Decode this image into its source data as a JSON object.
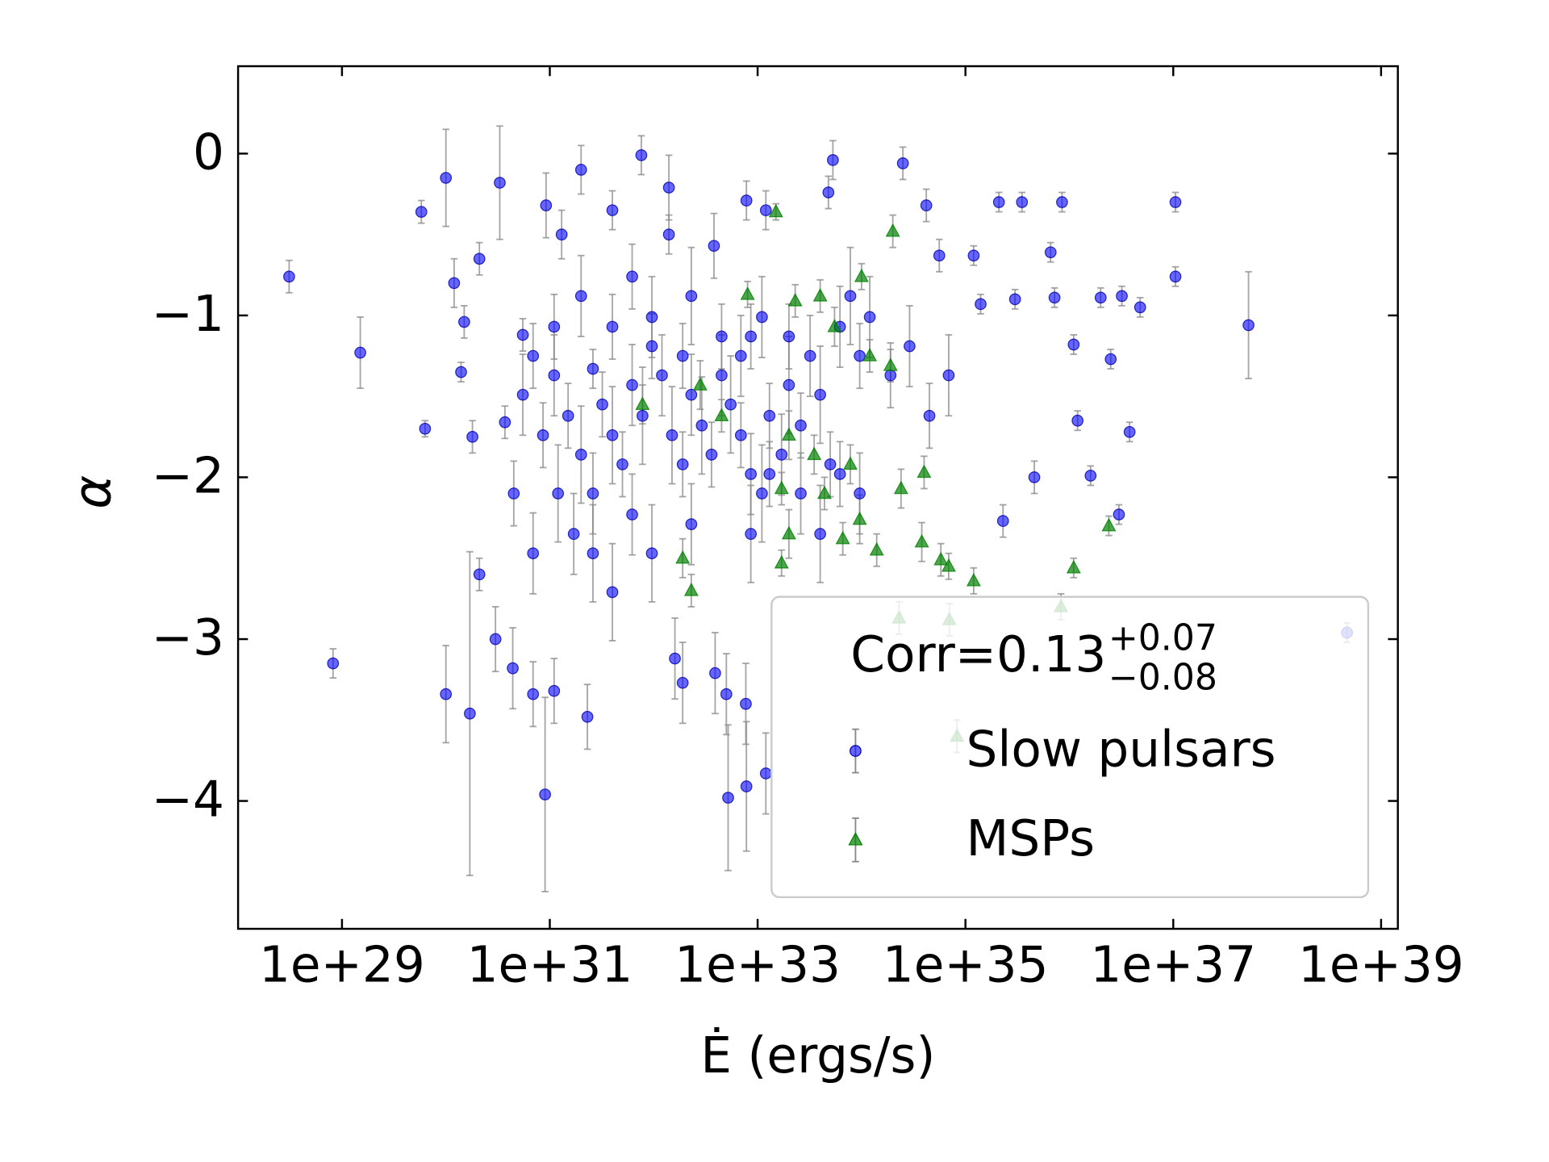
{
  "chart_data": {
    "type": "scatter",
    "xlabel": "Ė (ergs/s)",
    "ylabel": "α",
    "xscale": "log",
    "xlim": [
      1e+28,
      1.45e+39
    ],
    "ylim": [
      -4.79,
      0.54
    ],
    "xticks": [
      {
        "value": 1e+29,
        "label": "1e+29"
      },
      {
        "value": 1e+31,
        "label": "1e+31"
      },
      {
        "value": 1e+33,
        "label": "1e+33"
      },
      {
        "value": 1e+35,
        "label": "1e+35"
      },
      {
        "value": 1e+37,
        "label": "1e+37"
      },
      {
        "value": 1e+39,
        "label": "1e+39"
      }
    ],
    "yticks": [
      0,
      {
        "value": -1,
        "label": "−1"
      },
      {
        "value": -2,
        "label": "−2"
      },
      {
        "value": -3,
        "label": "−3"
      },
      {
        "value": -4,
        "label": "−4"
      }
    ],
    "legend": {
      "loc": "lower right",
      "title": "Corr=0.13",
      "title_upper": "+0.07",
      "title_lower": "−0.08"
    },
    "series": [
      {
        "name": "Slow pulsars",
        "color": "#0000ff",
        "marker": "circle",
        "x": [
          3.1e+28,
          8.2e+28,
          1.5e+29,
          5.8e+29,
          6.3e+29,
          1e+30,
          1e+30,
          1.2e+30,
          1.7e+30,
          2.1e+30,
          3e+30,
          3.3e+30,
          1.5e+30,
          1.4e+30,
          1.8e+30,
          2.1e+30,
          3.7e+30,
          4.4e+30,
          5.5e+30,
          6.9e+30,
          9e+30,
          9.2e+30,
          1.1e+31,
          1.3e+31,
          2e+31,
          2.3e+31,
          2.6e+31,
          4e+31,
          7.6e+31,
          1.4e+32,
          1.6e+32,
          1.9e+32,
          1.4e+32,
          3.8e+32,
          7.8e+32,
          1.2e+33,
          5.2e+32,
          7.8e+32,
          5e+32,
          7.7e+32,
          3.9e+32,
          5.3e+33,
          4.8e+33,
          2.5e+34,
          4.2e+34,
          5.6e+34,
          1.2e+35,
          1.4e+35,
          2.1e+35,
          2.3e+35,
          3.5e+35,
          3e+35,
          4.6e+35,
          6.6e+35,
          7.2e+35,
          8.5e+35,
          1.1e+36,
          1.2e+36,
          1.6e+36,
          2e+36,
          2.5e+36,
          3e+36,
          3.2e+36,
          3.8e+36,
          4.8e+36,
          1.05e+37,
          1.05e+37,
          5.3e+37,
          4.7e+38,
          1.2e+33,
          6.9e+30,
          1.1e+31,
          1.5e+31,
          2e+31,
          2.6e+31,
          3.2e+31,
          4e+31,
          5e+31,
          6.2e+31,
          7.8e+31,
          9.6e+31,
          1.2e+32,
          1.5e+32,
          1.9e+32,
          2.3e+32,
          2.9e+32,
          3.6e+32,
          4.5e+32,
          5.5e+32,
          6.9e+32,
          8.6e+32,
          1.1e+33,
          1.3e+33,
          1.7e+33,
          2e+33,
          2.6e+33,
          3.2e+33,
          4e+33,
          5e+33,
          6.2e+33,
          7.8e+33,
          9.6e+33,
          1.2e+34,
          1.9e+34,
          2.9e+34,
          4.5e+34,
          6.9e+34,
          8.6e+30,
          1.2e+31,
          1.7e+31,
          4e+31,
          6.2e+31,
          9.6e+31,
          2.3e+32,
          8.6e+32,
          4e+31,
          9.6e+31,
          2.3e+32,
          4.5e+32,
          1.1e+33,
          2e+33,
          2e+31,
          1.1e+31,
          5.5e+30,
          4.5e+30,
          6.9e+30,
          2.6e+31,
          1.9e+32,
          6.9e+32,
          1.3e+33,
          2.6e+33,
          4e+33,
          6.2e+33,
          9.6e+33,
          8.6e+32,
          6.2e+31
        ],
        "values": [
          -0.76,
          -3.15,
          -1.23,
          -0.36,
          -1.7,
          -0.15,
          -3.34,
          -0.8,
          -3.46,
          -2.6,
          -3.0,
          -0.18,
          -1.04,
          -1.35,
          -1.75,
          -0.65,
          -1.66,
          -3.18,
          -1.12,
          -3.34,
          -3.96,
          -0.32,
          -3.32,
          -0.5,
          -0.1,
          -3.48,
          -1.33,
          -0.35,
          -0.01,
          -0.21,
          -3.12,
          -3.27,
          -0.5,
          -0.57,
          -0.29,
          -0.35,
          -3.98,
          -3.91,
          -3.34,
          -3.4,
          -3.21,
          -0.04,
          -0.24,
          -0.06,
          -0.32,
          -0.63,
          -0.63,
          -0.93,
          -0.3,
          -2.27,
          -0.3,
          -0.9,
          -2.0,
          -0.61,
          -0.89,
          -0.3,
          -1.18,
          -1.65,
          -1.99,
          -0.89,
          -1.27,
          -2.23,
          -0.88,
          -1.72,
          -0.95,
          -0.3,
          -0.76,
          -1.06,
          -2.96,
          -3.83,
          -1.25,
          -1.37,
          -1.62,
          -1.86,
          -2.1,
          -1.55,
          -1.74,
          -1.92,
          -1.43,
          -1.62,
          -1.19,
          -1.37,
          -1.74,
          -1.92,
          -1.49,
          -1.68,
          -1.86,
          -1.37,
          -1.55,
          -1.74,
          -1.98,
          -2.1,
          -1.62,
          -1.86,
          -1.43,
          -1.68,
          -1.25,
          -1.49,
          -1.92,
          -1.07,
          -0.88,
          -1.25,
          -1.01,
          -1.37,
          -1.19,
          -1.62,
          -1.37,
          -1.74,
          -2.1,
          -2.35,
          -2.71,
          -2.23,
          -2.47,
          -2.29,
          -2.35,
          -1.07,
          -1.01,
          -0.88,
          -1.13,
          -1.01,
          -1.13,
          -0.88,
          -1.07,
          -1.49,
          -2.1,
          -2.47,
          -2.47,
          -1.25,
          -1.25,
          -1.98,
          -2.1,
          -2.35,
          -1.98,
          -2.1,
          -1.13,
          -0.76
        ],
        "errors": [
          0.1,
          0.09,
          0.22,
          0.07,
          0.05,
          0.3,
          0.3,
          0.15,
          1.0,
          0.1,
          0.2,
          0.35,
          0.1,
          0.06,
          0.1,
          0.1,
          0.1,
          0.25,
          0.1,
          0.2,
          0.6,
          0.2,
          0.2,
          0.15,
          0.15,
          0.2,
          0.12,
          0.12,
          0.12,
          0.2,
          0.25,
          0.25,
          0.12,
          0.2,
          0.12,
          0.12,
          0.45,
          0.4,
          0.25,
          0.25,
          0.25,
          0.12,
          0.1,
          0.1,
          0.1,
          0.1,
          0.06,
          0.06,
          0.06,
          0.1,
          0.06,
          0.06,
          0.1,
          0.06,
          0.06,
          0.06,
          0.06,
          0.06,
          0.06,
          0.06,
          0.06,
          0.06,
          0.06,
          0.06,
          0.06,
          0.06,
          0.06,
          0.33,
          0.06,
          0.25,
          0.2,
          0.25,
          0.2,
          0.3,
          0.25,
          0.2,
          0.3,
          0.2,
          0.25,
          0.3,
          0.2,
          0.25,
          0.3,
          0.2,
          0.25,
          0.3,
          0.2,
          0.25,
          0.3,
          0.2,
          0.25,
          0.3,
          0.2,
          0.25,
          0.3,
          0.2,
          0.25,
          0.3,
          0.2,
          0.25,
          0.3,
          0.2,
          0.25,
          0.2,
          0.25,
          0.2,
          0.25,
          0.2,
          0.3,
          0.25,
          0.3,
          0.25,
          0.3,
          0.25,
          0.3,
          0.2,
          0.25,
          0.3,
          0.2,
          0.25,
          0.2,
          0.25,
          0.2,
          0.25,
          0.2,
          0.25,
          0.3,
          0.2,
          0.25,
          0.2,
          0.25,
          0.3,
          0.2,
          0.25,
          0.2,
          0.2
        ]
      },
      {
        "name": "MSPs",
        "color": "#008000",
        "marker": "triangle",
        "x": [
          1.5e+33,
          2e+34,
          8e+32,
          2.3e+33,
          4e+33,
          1e+34,
          5.5e+33,
          1.2e+34,
          1.9e+34,
          2.8e+32,
          7.8e+31,
          4.5e+32,
          2e+33,
          3.5e+33,
          4.4e+33,
          7.8e+33,
          1.7e+33,
          9.6e+33,
          6.6e+33,
          1.4e+34,
          1.7e+33,
          1.9e+32,
          2.3e+32,
          2e+33,
          3.8e+34,
          5.8e+34,
          6.9e+34,
          1.2e+35,
          1.1e+36,
          2.4e+36,
          2.3e+34,
          7e+34,
          8.3e+35,
          8.3e+34,
          2.4e+34,
          4e+34
        ],
        "values": [
          -0.36,
          -0.48,
          -0.87,
          -0.91,
          -0.88,
          -0.76,
          -1.07,
          -1.25,
          -1.31,
          -1.43,
          -1.55,
          -1.62,
          -1.74,
          -1.86,
          -2.1,
          -1.92,
          -2.07,
          -2.26,
          -2.38,
          -2.45,
          -2.53,
          -2.5,
          -2.7,
          -2.35,
          -2.4,
          -2.51,
          -2.55,
          -2.64,
          -2.56,
          -2.3,
          -2.87,
          -2.88,
          -2.8,
          -3.6,
          -2.07,
          -1.97
        ],
        "errors": [
          0.05,
          0.1,
          0.08,
          0.1,
          0.1,
          0.08,
          0.12,
          0.1,
          0.1,
          0.15,
          0.12,
          0.1,
          0.15,
          0.12,
          0.1,
          0.12,
          0.1,
          0.15,
          0.1,
          0.1,
          0.08,
          0.12,
          0.1,
          0.15,
          0.12,
          0.1,
          0.08,
          0.08,
          0.06,
          0.06,
          0.1,
          0.1,
          0.08,
          0.1,
          0.12,
          0.1
        ]
      }
    ]
  }
}
